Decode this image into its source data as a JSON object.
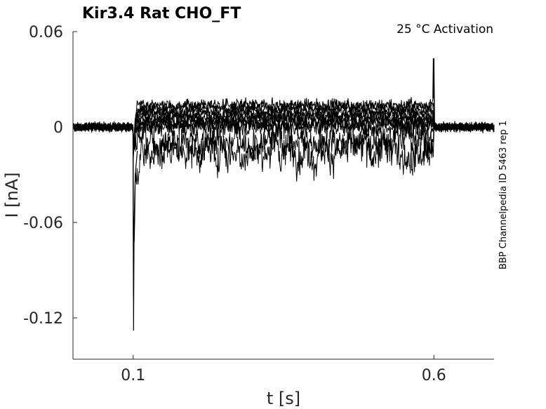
{
  "chart_data": {
    "type": "line",
    "title": "Kir3.4  Rat  CHO_FT",
    "annotation": "25 °C  Activation",
    "side_label": "BBP Channelpedia ID 5463 rep 1",
    "xlabel": "t [s]",
    "ylabel": "I [nA]",
    "xlim": [
      0.0,
      0.7
    ],
    "ylim": [
      -0.146,
      0.06
    ],
    "xticks": [
      0.1,
      0.6
    ],
    "xtick_labels": [
      "0.1",
      "0.6"
    ],
    "yticks": [
      0.06,
      0,
      -0.06,
      -0.12
    ],
    "ytick_labels": [
      "0.06",
      "0",
      "-0.06",
      "-0.12"
    ],
    "grid": false,
    "stimulus": {
      "on": 0.1,
      "off": 0.6
    },
    "series": [
      {
        "baseline": 0.0,
        "step": 0.014,
        "noise": 0.004
      },
      {
        "baseline": 0.0,
        "step": 0.012,
        "noise": 0.004
      },
      {
        "baseline": 0.0,
        "step": 0.01,
        "noise": 0.004
      },
      {
        "baseline": 0.0,
        "step": 0.008,
        "noise": 0.004
      },
      {
        "baseline": 0.0,
        "step": 0.006,
        "noise": 0.004
      },
      {
        "baseline": 0.0,
        "step": 0.004,
        "noise": 0.005
      },
      {
        "baseline": 0.0,
        "step": 0.002,
        "noise": 0.005
      },
      {
        "baseline": 0.0,
        "step": 0.0,
        "noise": 0.007
      },
      {
        "baseline": 0.0,
        "step": -0.008,
        "noise": 0.009
      },
      {
        "baseline": 0.0,
        "step": -0.015,
        "noise": 0.01
      }
    ],
    "transient": {
      "t": 0.1,
      "min": -0.128
    },
    "end_spike": {
      "t": 0.6,
      "max": 0.043
    }
  }
}
